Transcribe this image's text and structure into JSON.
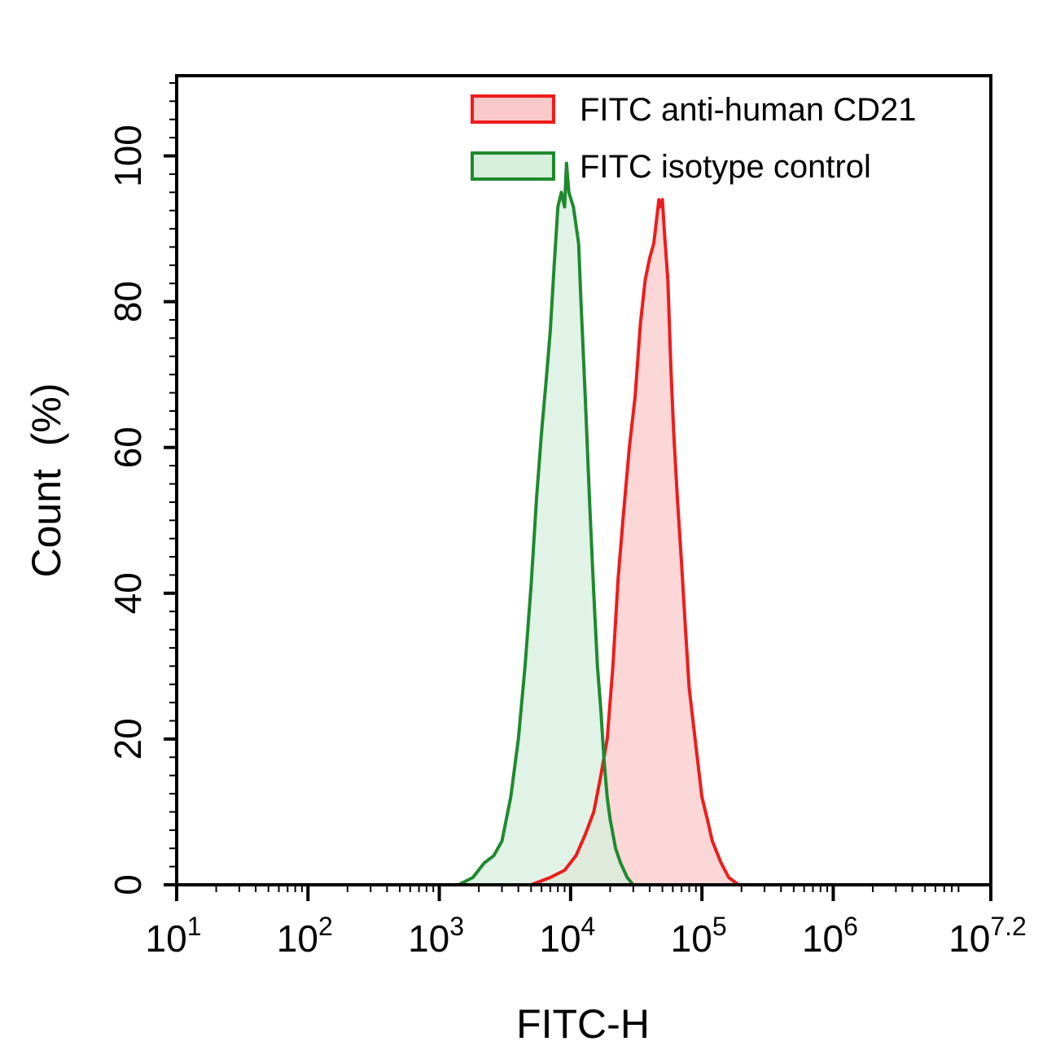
{
  "chart_data": {
    "type": "area",
    "xlabel": "FITC-H",
    "ylabel": "Count  (%)",
    "x_scale": "log10",
    "xlim": [
      10,
      15848932
    ],
    "ylim": [
      0,
      111
    ],
    "x_ticks": [
      {
        "value": 10,
        "base": "10",
        "exp": "1"
      },
      {
        "value": 100,
        "base": "10",
        "exp": "2"
      },
      {
        "value": 1000,
        "base": "10",
        "exp": "3"
      },
      {
        "value": 10000,
        "base": "10",
        "exp": "4"
      },
      {
        "value": 100000,
        "base": "10",
        "exp": "5"
      },
      {
        "value": 1000000,
        "base": "10",
        "exp": "6"
      },
      {
        "value": 15848932,
        "base": "10",
        "exp": "7.2"
      }
    ],
    "y_ticks": [
      0,
      20,
      40,
      60,
      80,
      100
    ],
    "y_tick_labels": [
      "0",
      "20",
      "40",
      "60",
      "80",
      "100"
    ],
    "grid": false,
    "legend_position": "top-right",
    "series": [
      {
        "name": "FITC anti-human CD21",
        "line_color": "#ee1c1c",
        "fill_color": "#f9c9c9",
        "x": [
          5000,
          7000,
          9000,
          11000,
          13000,
          15000,
          17000,
          19000,
          21000,
          23000,
          25000,
          28000,
          31000,
          34000,
          37000,
          40000,
          43000,
          45000,
          47000,
          48500,
          50000,
          52000,
          55000,
          58000,
          61000,
          65000,
          70000,
          75000,
          80000,
          90000,
          100000,
          110000,
          120000,
          140000,
          160000,
          190000
        ],
        "y": [
          0,
          1,
          2,
          4,
          7,
          10,
          15,
          20,
          30,
          42,
          50,
          60,
          67,
          77,
          83,
          86,
          88,
          91,
          94,
          93,
          94,
          89,
          83,
          71,
          62,
          53,
          44,
          35,
          27,
          19,
          12,
          9,
          6,
          3,
          1,
          0
        ]
      },
      {
        "name": "FITC isotype control",
        "line_color": "#1e8a2e",
        "fill_color": "#d6efdd",
        "x": [
          1400,
          1800,
          2200,
          2600,
          3000,
          3500,
          4000,
          4500,
          5000,
          5500,
          6000,
          6500,
          7000,
          7500,
          8000,
          8500,
          9000,
          9300,
          9700,
          10500,
          11500,
          12000,
          13000,
          14000,
          15000,
          16000,
          17000,
          18000,
          19000,
          20000,
          22000,
          24000,
          27000,
          30000
        ],
        "y": [
          0,
          1,
          3,
          4,
          6,
          12,
          20,
          30,
          41,
          53,
          62,
          69,
          76,
          85,
          93,
          95,
          93,
          99,
          95,
          93,
          88,
          80,
          66,
          52,
          40,
          30,
          24,
          17,
          12,
          9,
          5,
          3,
          1,
          0
        ]
      }
    ]
  }
}
